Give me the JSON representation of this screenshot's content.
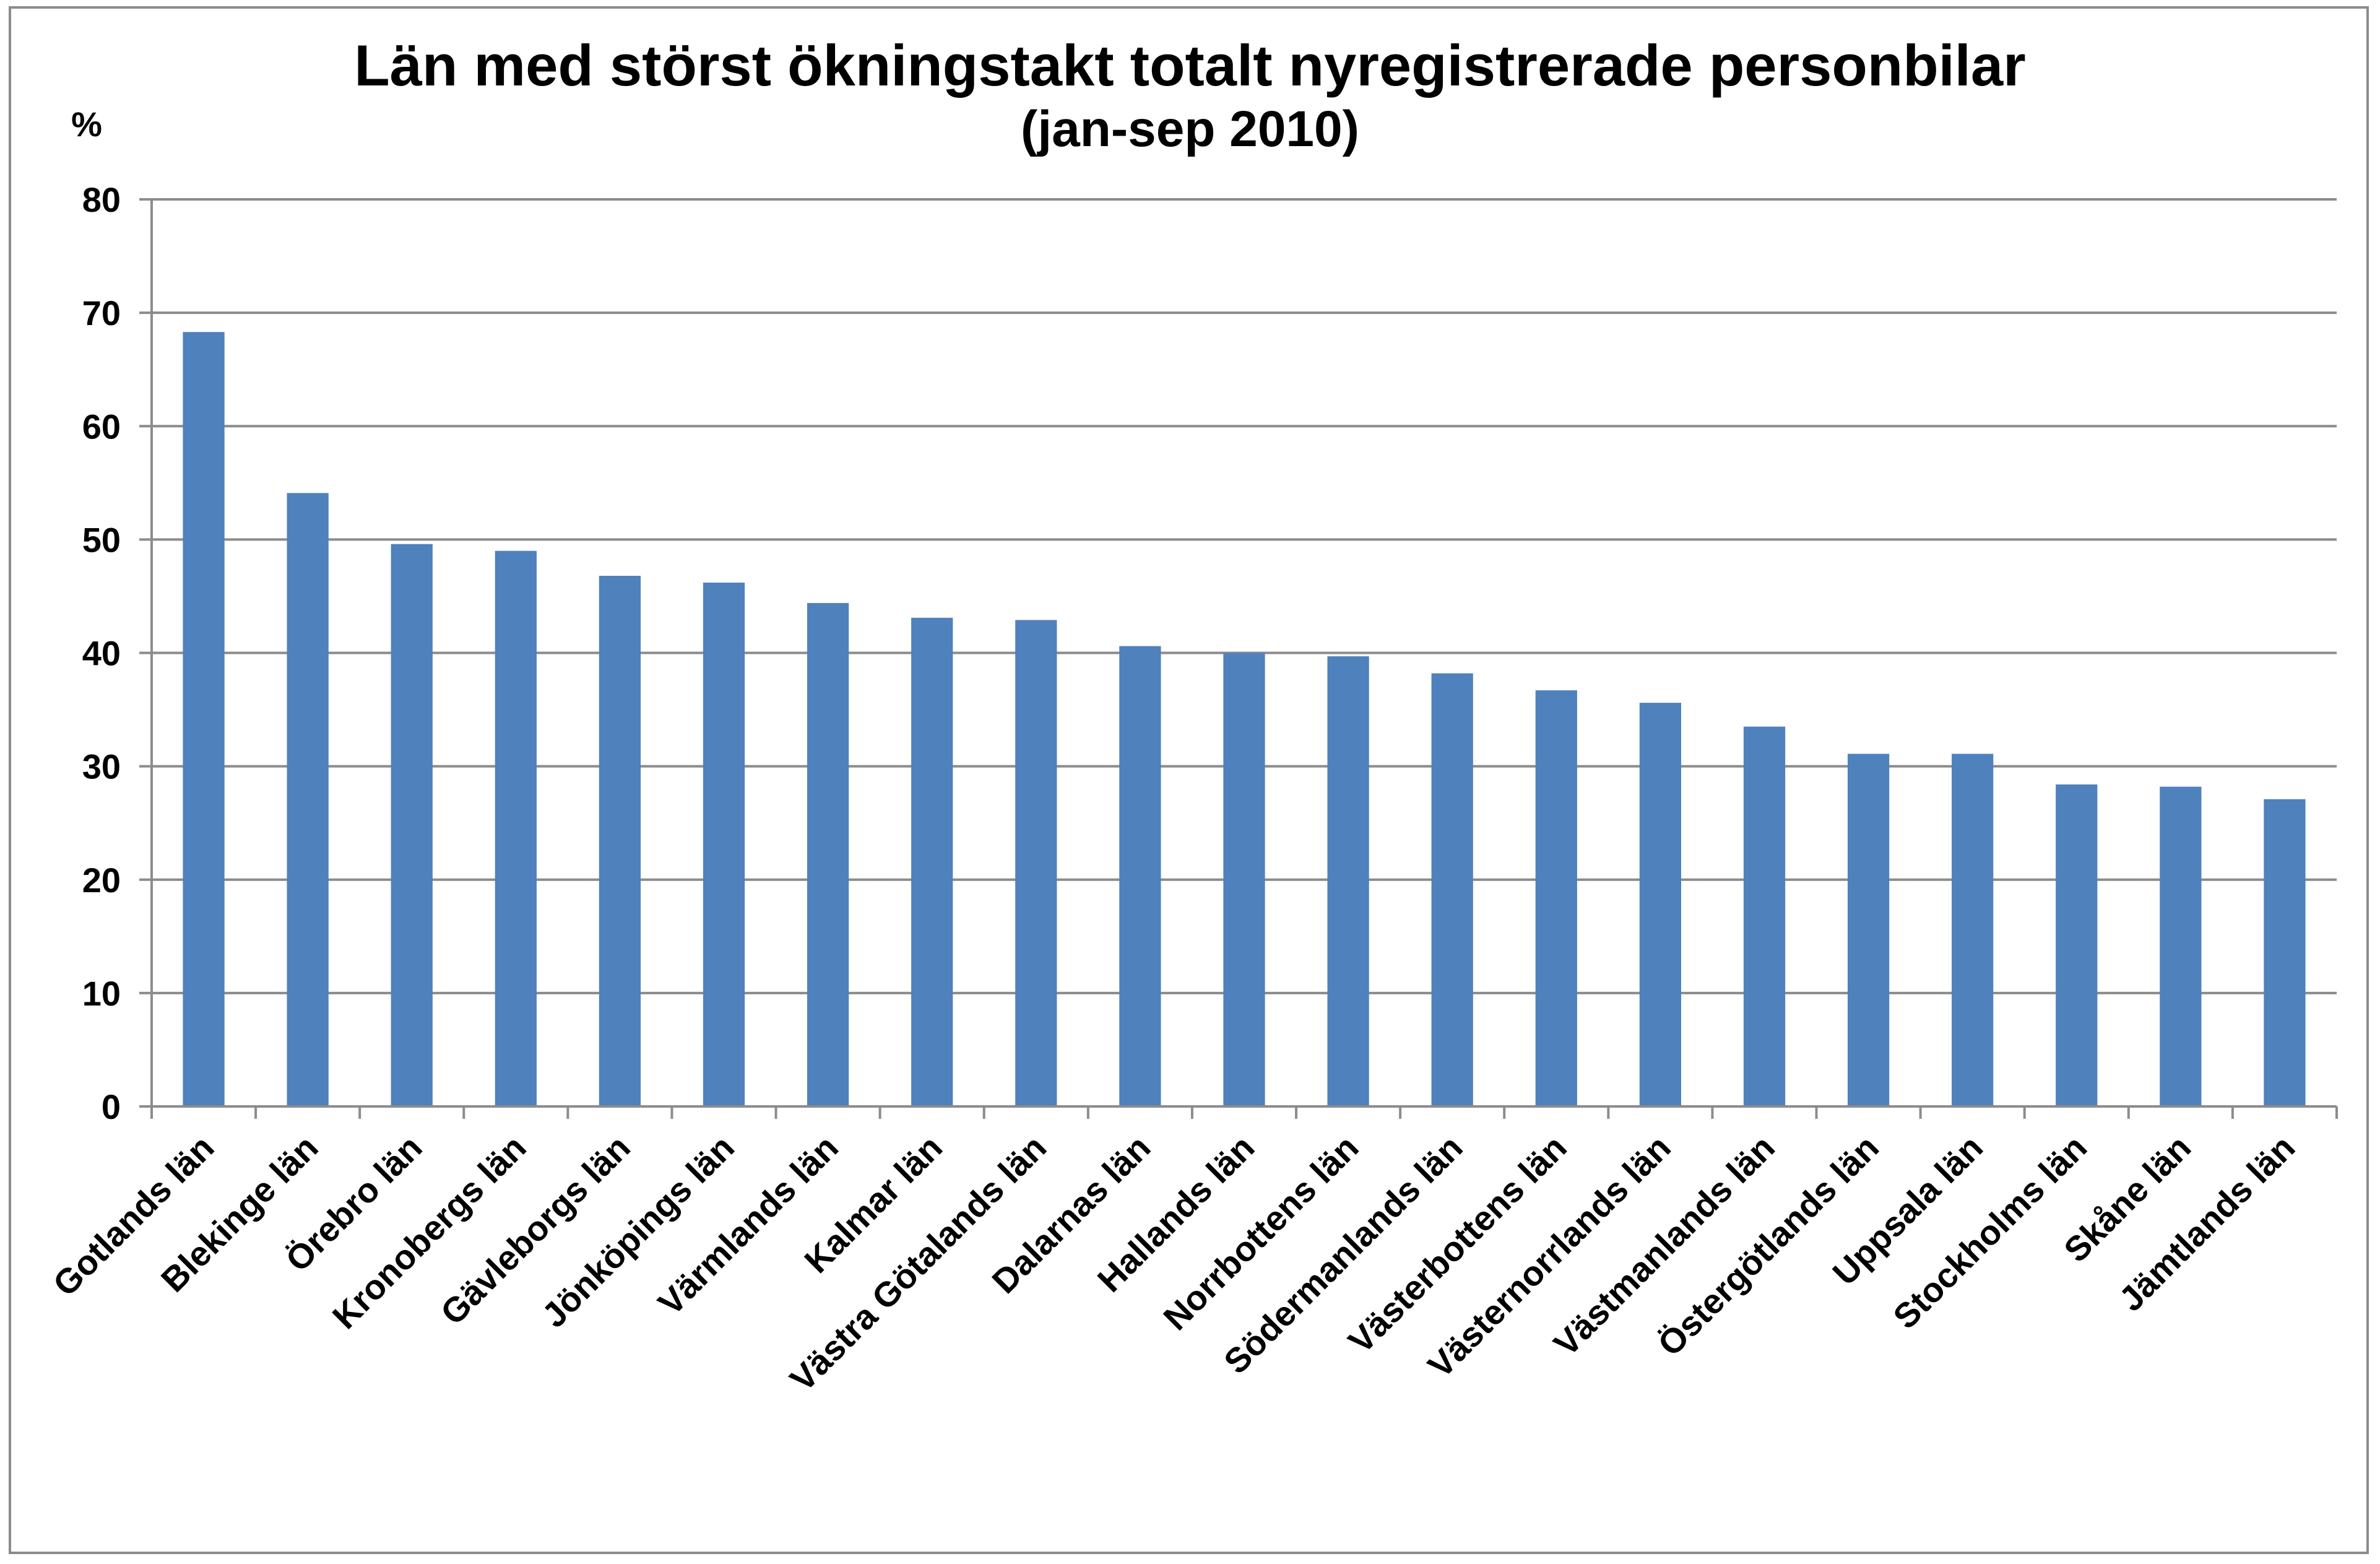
{
  "chart_data": {
    "type": "bar",
    "title": "Län med störst ökningstakt totalt nyregistrerade  personbilar",
    "subtitle": "(jan-sep 2010)",
    "ylabel": "%",
    "xlabel": "",
    "ylim": [
      0,
      80
    ],
    "yticks": [
      0,
      10,
      20,
      30,
      40,
      50,
      60,
      70,
      80
    ],
    "grid": true,
    "legend": "none",
    "bar_color": "#4f81bd",
    "categories": [
      "Gotlands län",
      "Blekinge län",
      "Örebro län",
      "Kronobergs län",
      "Gävleborgs län",
      "Jönköpings län",
      "Värmlands län",
      "Kalmar län",
      "Västra Götalands län",
      "Dalarnas län",
      "Hallands län",
      "Norrbottens län",
      "Södermanlands län",
      "Västerbottens län",
      "Västernorrlands län",
      "Västmanlands län",
      "Östergötlands län",
      "Uppsala län",
      "Stockholms län",
      "Skåne län",
      "Jämtlands län"
    ],
    "values": [
      68.3,
      54.1,
      49.6,
      49.0,
      46.8,
      46.2,
      44.4,
      43.1,
      42.9,
      40.6,
      40.0,
      39.7,
      38.2,
      36.7,
      35.6,
      33.5,
      31.1,
      31.1,
      28.4,
      28.2,
      27.1
    ]
  }
}
